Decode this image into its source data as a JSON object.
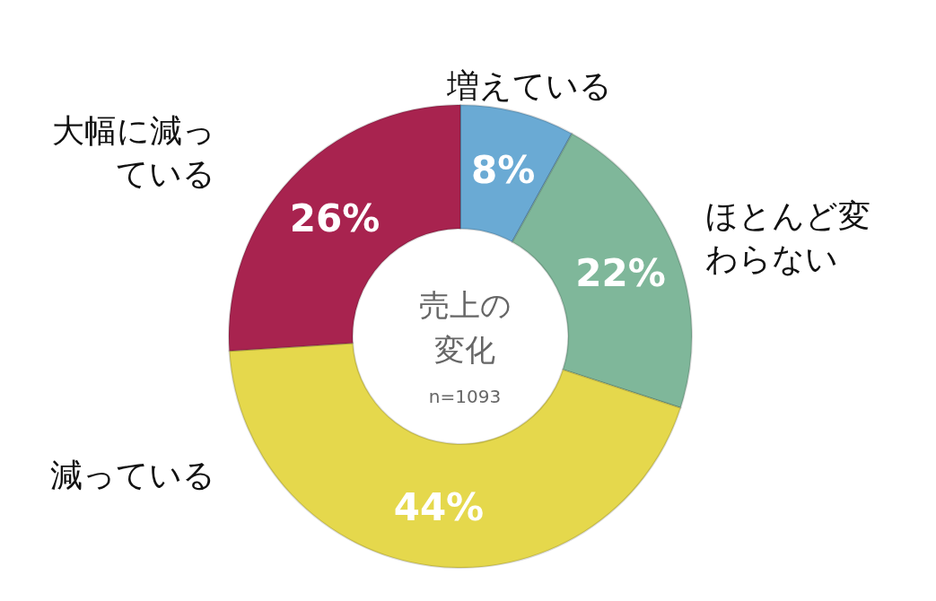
{
  "chart_data": {
    "type": "donut",
    "title": "売上の変化",
    "subtitle": "n=1093",
    "categories": [
      "増えている",
      "ほとんど変わらない",
      "減っている",
      "大幅に減っている"
    ],
    "values": [
      8,
      22,
      44,
      26
    ],
    "colors": [
      "#6aaad4",
      "#7fb79a",
      "#e5d84c",
      "#a8234f"
    ],
    "value_labels": [
      "8%",
      "22%",
      "44%",
      "26%"
    ],
    "legend": false
  }
}
